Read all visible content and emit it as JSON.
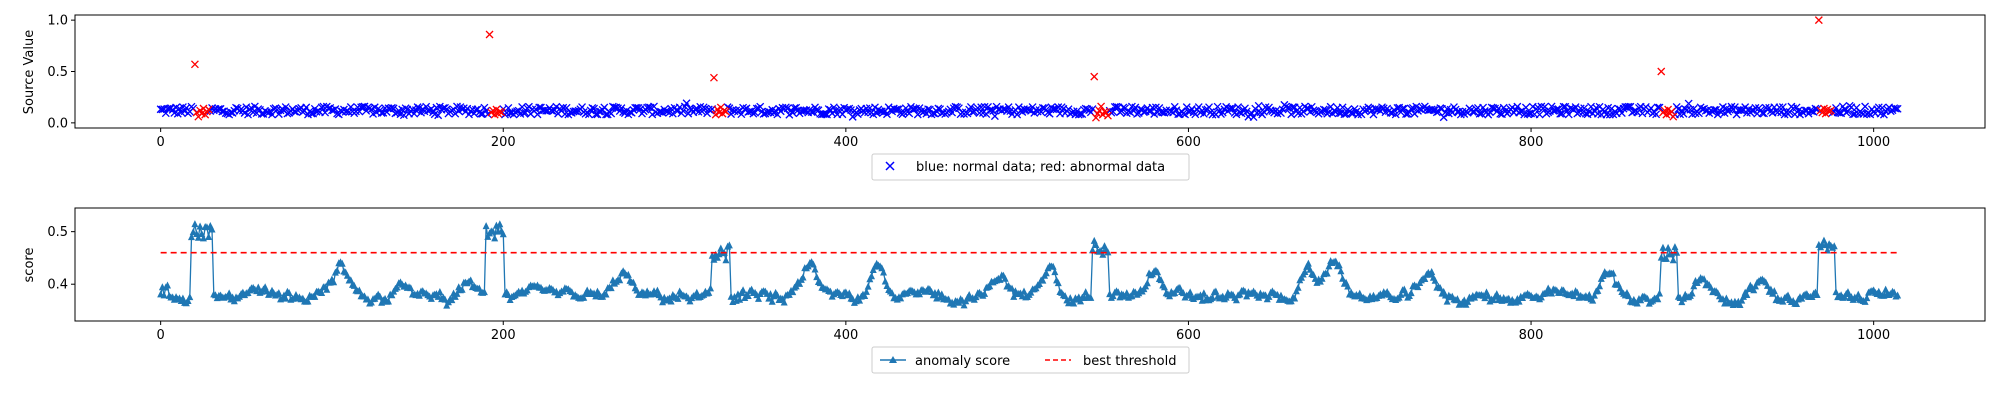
{
  "chart_data": [
    {
      "type": "scatter",
      "title": "",
      "xlabel": "",
      "ylabel": "Source Value",
      "xlim": [
        -50,
        1065
      ],
      "ylim": [
        -0.05,
        1.05
      ],
      "xticks": [
        "0",
        "200",
        "400",
        "600",
        "800",
        "1000"
      ],
      "yticks": [
        "0.0",
        "0.5",
        "1.0"
      ],
      "grid": false,
      "legend_position": "below-center",
      "legend": [
        "blue: normal data; red: abnormal data"
      ],
      "colors": {
        "normal": "#0000ff",
        "abnormal": "#ff0000"
      },
      "n_points": 1015,
      "normal_baseline": 0.12,
      "normal_spread": 0.04,
      "abnormal_points": [
        {
          "x": 20,
          "y": 0.57
        },
        {
          "x": 21,
          "y": 0.1
        },
        {
          "x": 22,
          "y": 0.06
        },
        {
          "x": 23,
          "y": 0.12
        },
        {
          "x": 24,
          "y": 0.09
        },
        {
          "x": 25,
          "y": 0.14
        },
        {
          "x": 26,
          "y": 0.08
        },
        {
          "x": 27,
          "y": 0.11
        },
        {
          "x": 28,
          "y": 0.13
        },
        {
          "x": 192,
          "y": 0.86
        },
        {
          "x": 193,
          "y": 0.1
        },
        {
          "x": 194,
          "y": 0.12
        },
        {
          "x": 195,
          "y": 0.08
        },
        {
          "x": 196,
          "y": 0.13
        },
        {
          "x": 197,
          "y": 0.09
        },
        {
          "x": 198,
          "y": 0.11
        },
        {
          "x": 199,
          "y": 0.1
        },
        {
          "x": 323,
          "y": 0.44
        },
        {
          "x": 324,
          "y": 0.08
        },
        {
          "x": 325,
          "y": 0.13
        },
        {
          "x": 326,
          "y": 0.1
        },
        {
          "x": 327,
          "y": 0.15
        },
        {
          "x": 328,
          "y": 0.09
        },
        {
          "x": 329,
          "y": 0.12
        },
        {
          "x": 330,
          "y": 0.11
        },
        {
          "x": 545,
          "y": 0.45
        },
        {
          "x": 546,
          "y": 0.05
        },
        {
          "x": 547,
          "y": 0.09
        },
        {
          "x": 548,
          "y": 0.12
        },
        {
          "x": 549,
          "y": 0.16
        },
        {
          "x": 550,
          "y": 0.08
        },
        {
          "x": 551,
          "y": 0.11
        },
        {
          "x": 552,
          "y": 0.1
        },
        {
          "x": 553,
          "y": 0.07
        },
        {
          "x": 876,
          "y": 0.5
        },
        {
          "x": 877,
          "y": 0.1
        },
        {
          "x": 878,
          "y": 0.12
        },
        {
          "x": 879,
          "y": 0.08
        },
        {
          "x": 880,
          "y": 0.13
        },
        {
          "x": 881,
          "y": 0.09
        },
        {
          "x": 882,
          "y": 0.11
        },
        {
          "x": 883,
          "y": 0.06
        },
        {
          "x": 968,
          "y": 1.0
        },
        {
          "x": 969,
          "y": 0.12
        },
        {
          "x": 970,
          "y": 0.1
        },
        {
          "x": 971,
          "y": 0.14
        },
        {
          "x": 972,
          "y": 0.09
        },
        {
          "x": 973,
          "y": 0.13
        },
        {
          "x": 974,
          "y": 0.11
        },
        {
          "x": 975,
          "y": 0.12
        }
      ]
    },
    {
      "type": "line",
      "title": "",
      "xlabel": "",
      "ylabel": "score",
      "xlim": [
        -50,
        1065
      ],
      "ylim": [
        0.33,
        0.545
      ],
      "xticks": [
        "0",
        "200",
        "400",
        "600",
        "800",
        "1000"
      ],
      "yticks": [
        "0.4",
        "0.5"
      ],
      "grid": false,
      "legend_position": "below-center",
      "series": [
        {
          "name": "anomaly score",
          "color": "#1f77b4",
          "marker": "triangle",
          "baseline": 0.375,
          "segments": [
            {
              "x0": 0,
              "x1": 5,
              "y": 0.39
            },
            {
              "x0": 18,
              "x1": 30,
              "y": 0.5
            },
            {
              "x0": 190,
              "x1": 200,
              "y": 0.5
            },
            {
              "x0": 322,
              "x1": 332,
              "y": 0.46
            },
            {
              "x0": 544,
              "x1": 553,
              "y": 0.47
            },
            {
              "x0": 876,
              "x1": 885,
              "y": 0.46
            },
            {
              "x0": 968,
              "x1": 977,
              "y": 0.47
            }
          ],
          "bumps": [
            {
              "x": 105,
              "y": 0.43
            },
            {
              "x": 140,
              "y": 0.41
            },
            {
              "x": 180,
              "y": 0.4
            },
            {
              "x": 270,
              "y": 0.42
            },
            {
              "x": 380,
              "y": 0.43
            },
            {
              "x": 418,
              "y": 0.45
            },
            {
              "x": 490,
              "y": 0.42
            },
            {
              "x": 520,
              "y": 0.43
            },
            {
              "x": 580,
              "y": 0.43
            },
            {
              "x": 670,
              "y": 0.43
            },
            {
              "x": 685,
              "y": 0.45
            },
            {
              "x": 740,
              "y": 0.42
            },
            {
              "x": 845,
              "y": 0.42
            },
            {
              "x": 900,
              "y": 0.42
            },
            {
              "x": 935,
              "y": 0.41
            }
          ]
        },
        {
          "name": "best threshold",
          "color": "#ff0000",
          "style": "dashed",
          "x": [
            0,
            1015
          ],
          "y": [
            0.46,
            0.46
          ]
        }
      ]
    }
  ]
}
